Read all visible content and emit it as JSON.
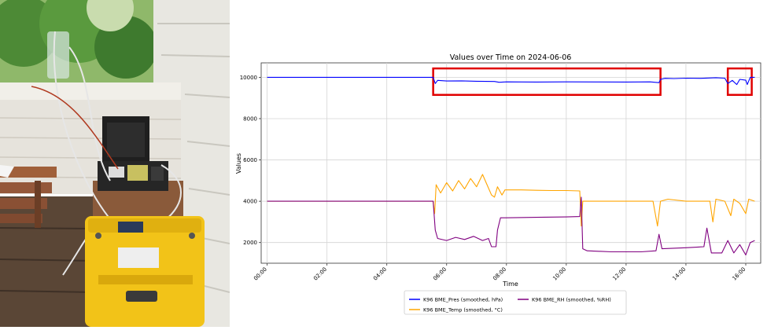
{
  "photo": {
    "subject": "balcony-with-sensor-equipment",
    "case_color": "#f2c318",
    "enclosure_color": "#1f1f1f",
    "wall_color": "#ecebe6",
    "foliage_color": "#4d8a36"
  },
  "chart_data": {
    "type": "line",
    "title": "Values over Time on 2024-06-06",
    "xlabel": "Time",
    "ylabel": "Values",
    "x_ticks": [
      "00:00",
      "02:00",
      "04:00",
      "06:00",
      "08:00",
      "10:00",
      "12:00",
      "14:00",
      "16:00"
    ],
    "y_ticks": [
      2000,
      4000,
      6000,
      8000,
      10000
    ],
    "xlim_hours": [
      -0.2,
      16.5
    ],
    "ylim": [
      1000,
      10700
    ],
    "grid": true,
    "legend_position": "bottom-center",
    "series": [
      {
        "name": "K96 BME_Pres (smoothed, hPa)",
        "color": "#0000ff",
        "points": [
          [
            0,
            10000
          ],
          [
            5.55,
            10000
          ],
          [
            5.62,
            9700
          ],
          [
            5.7,
            9850
          ],
          [
            6.0,
            9820
          ],
          [
            6.5,
            9830
          ],
          [
            7.0,
            9810
          ],
          [
            7.6,
            9800
          ],
          [
            7.75,
            9760
          ],
          [
            8.0,
            9780
          ],
          [
            9.0,
            9770
          ],
          [
            10.0,
            9780
          ],
          [
            11.0,
            9775
          ],
          [
            12.0,
            9770
          ],
          [
            12.8,
            9780
          ],
          [
            13.1,
            9740
          ],
          [
            13.15,
            9900
          ],
          [
            13.3,
            9950
          ],
          [
            13.6,
            9940
          ],
          [
            14.0,
            9960
          ],
          [
            14.5,
            9950
          ],
          [
            15.0,
            9980
          ],
          [
            15.3,
            9960
          ],
          [
            15.4,
            9700
          ],
          [
            15.55,
            9850
          ],
          [
            15.7,
            9650
          ],
          [
            15.8,
            9900
          ],
          [
            16.0,
            9860
          ],
          [
            16.05,
            9650
          ],
          [
            16.15,
            10000
          ],
          [
            16.3,
            10000
          ]
        ]
      },
      {
        "name": "K96 BME_Temp (smoothed, °C)",
        "color": "#ffa500",
        "points": [
          [
            0,
            4000
          ],
          [
            5.55,
            4000
          ],
          [
            5.6,
            3400
          ],
          [
            5.65,
            4800
          ],
          [
            5.8,
            4400
          ],
          [
            6.0,
            4900
          ],
          [
            6.2,
            4500
          ],
          [
            6.4,
            5000
          ],
          [
            6.6,
            4600
          ],
          [
            6.8,
            5100
          ],
          [
            7.0,
            4700
          ],
          [
            7.2,
            5300
          ],
          [
            7.35,
            4800
          ],
          [
            7.5,
            4300
          ],
          [
            7.6,
            4200
          ],
          [
            7.7,
            4700
          ],
          [
            7.85,
            4300
          ],
          [
            7.95,
            4550
          ],
          [
            8.5,
            4550
          ],
          [
            9.0,
            4530
          ],
          [
            9.5,
            4520
          ],
          [
            10.0,
            4520
          ],
          [
            10.45,
            4500
          ],
          [
            10.5,
            2800
          ],
          [
            10.55,
            4000
          ],
          [
            11.0,
            4000
          ],
          [
            12.0,
            4000
          ],
          [
            12.9,
            4000
          ],
          [
            13.05,
            2800
          ],
          [
            13.15,
            4000
          ],
          [
            13.4,
            4100
          ],
          [
            14.0,
            4000
          ],
          [
            14.5,
            4000
          ],
          [
            14.8,
            4000
          ],
          [
            14.9,
            3000
          ],
          [
            15.0,
            4100
          ],
          [
            15.3,
            4000
          ],
          [
            15.5,
            3300
          ],
          [
            15.6,
            4100
          ],
          [
            15.8,
            3900
          ],
          [
            16.0,
            3400
          ],
          [
            16.1,
            4100
          ],
          [
            16.3,
            4000
          ]
        ]
      },
      {
        "name": "K96 BME_RH (smoothed, %RH)",
        "color": "#800080",
        "points": [
          [
            0,
            4000
          ],
          [
            5.55,
            4000
          ],
          [
            5.62,
            2600
          ],
          [
            5.7,
            2200
          ],
          [
            6.0,
            2100
          ],
          [
            6.3,
            2250
          ],
          [
            6.6,
            2150
          ],
          [
            6.9,
            2300
          ],
          [
            7.2,
            2100
          ],
          [
            7.4,
            2200
          ],
          [
            7.5,
            1800
          ],
          [
            7.65,
            1800
          ],
          [
            7.7,
            2600
          ],
          [
            7.8,
            3200
          ],
          [
            8.0,
            3200
          ],
          [
            9.0,
            3220
          ],
          [
            10.0,
            3240
          ],
          [
            10.45,
            3260
          ],
          [
            10.5,
            4200
          ],
          [
            10.55,
            1700
          ],
          [
            10.7,
            1600
          ],
          [
            11.5,
            1550
          ],
          [
            12.5,
            1550
          ],
          [
            13.0,
            1600
          ],
          [
            13.1,
            2400
          ],
          [
            13.2,
            1700
          ],
          [
            14.0,
            1750
          ],
          [
            14.6,
            1800
          ],
          [
            14.7,
            2700
          ],
          [
            14.85,
            1500
          ],
          [
            15.2,
            1500
          ],
          [
            15.4,
            2100
          ],
          [
            15.6,
            1500
          ],
          [
            15.8,
            1900
          ],
          [
            16.0,
            1400
          ],
          [
            16.15,
            2000
          ],
          [
            16.3,
            2100
          ]
        ]
      }
    ],
    "highlight_boxes": [
      {
        "x0": 5.55,
        "x1": 13.15,
        "y0": 9150,
        "y1": 10430
      },
      {
        "x0": 15.4,
        "x1": 16.2,
        "y0": 9150,
        "y1": 10430
      }
    ],
    "highlight_color": "#e00000"
  }
}
